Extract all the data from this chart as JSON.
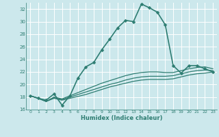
{
  "title": "",
  "xlabel": "Humidex (Indice chaleur)",
  "ylabel": "",
  "xlim": [
    -0.5,
    23.5
  ],
  "ylim": [
    16,
    33
  ],
  "yticks": [
    16,
    18,
    20,
    22,
    24,
    26,
    28,
    30,
    32
  ],
  "xticks": [
    0,
    1,
    2,
    3,
    4,
    5,
    6,
    7,
    8,
    9,
    10,
    11,
    12,
    13,
    14,
    15,
    16,
    17,
    18,
    19,
    20,
    21,
    22,
    23
  ],
  "bg_color": "#cce8ec",
  "grid_color": "#ffffff",
  "line_color": "#2e7d72",
  "series": [
    {
      "x": [
        0,
        1,
        2,
        3,
        4,
        5,
        6,
        7,
        8,
        9,
        10,
        11,
        12,
        13,
        14,
        15,
        16,
        17,
        18,
        19,
        20,
        21,
        22,
        23
      ],
      "y": [
        18.2,
        17.8,
        17.5,
        18.5,
        16.7,
        18.2,
        21.0,
        22.8,
        23.5,
        25.5,
        27.2,
        29.0,
        30.2,
        30.0,
        32.8,
        32.2,
        31.5,
        29.5,
        23.0,
        21.8,
        23.0,
        23.0,
        22.5,
        22.0
      ],
      "marker": "D",
      "markersize": 2.5,
      "linewidth": 1.2
    },
    {
      "x": [
        0,
        1,
        2,
        3,
        4,
        5,
        6,
        7,
        8,
        9,
        10,
        11,
        12,
        13,
        14,
        15,
        16,
        17,
        18,
        19,
        20,
        21,
        22,
        23
      ],
      "y": [
        18.2,
        17.8,
        17.3,
        17.8,
        17.5,
        17.8,
        18.1,
        18.4,
        18.8,
        19.2,
        19.6,
        19.9,
        20.2,
        20.5,
        20.7,
        20.8,
        20.8,
        20.8,
        20.9,
        21.2,
        21.5,
        21.7,
        21.8,
        22.0
      ],
      "marker": null,
      "markersize": 0,
      "linewidth": 0.9
    },
    {
      "x": [
        0,
        1,
        2,
        3,
        4,
        5,
        6,
        7,
        8,
        9,
        10,
        11,
        12,
        13,
        14,
        15,
        16,
        17,
        18,
        19,
        20,
        21,
        22,
        23
      ],
      "y": [
        18.2,
        17.8,
        17.3,
        17.9,
        17.6,
        18.0,
        18.4,
        18.8,
        19.2,
        19.6,
        20.0,
        20.3,
        20.7,
        21.0,
        21.2,
        21.3,
        21.3,
        21.3,
        21.4,
        21.7,
        22.0,
        22.2,
        22.3,
        22.2
      ],
      "marker": null,
      "markersize": 0,
      "linewidth": 0.9
    },
    {
      "x": [
        0,
        1,
        2,
        3,
        4,
        5,
        6,
        7,
        8,
        9,
        10,
        11,
        12,
        13,
        14,
        15,
        16,
        17,
        18,
        19,
        20,
        21,
        22,
        23
      ],
      "y": [
        18.2,
        17.8,
        17.3,
        18.0,
        17.7,
        18.2,
        18.7,
        19.2,
        19.7,
        20.2,
        20.6,
        21.0,
        21.4,
        21.7,
        21.9,
        22.0,
        22.0,
        21.9,
        21.9,
        22.2,
        22.5,
        22.7,
        22.8,
        22.5
      ],
      "marker": null,
      "markersize": 0,
      "linewidth": 0.9
    }
  ]
}
